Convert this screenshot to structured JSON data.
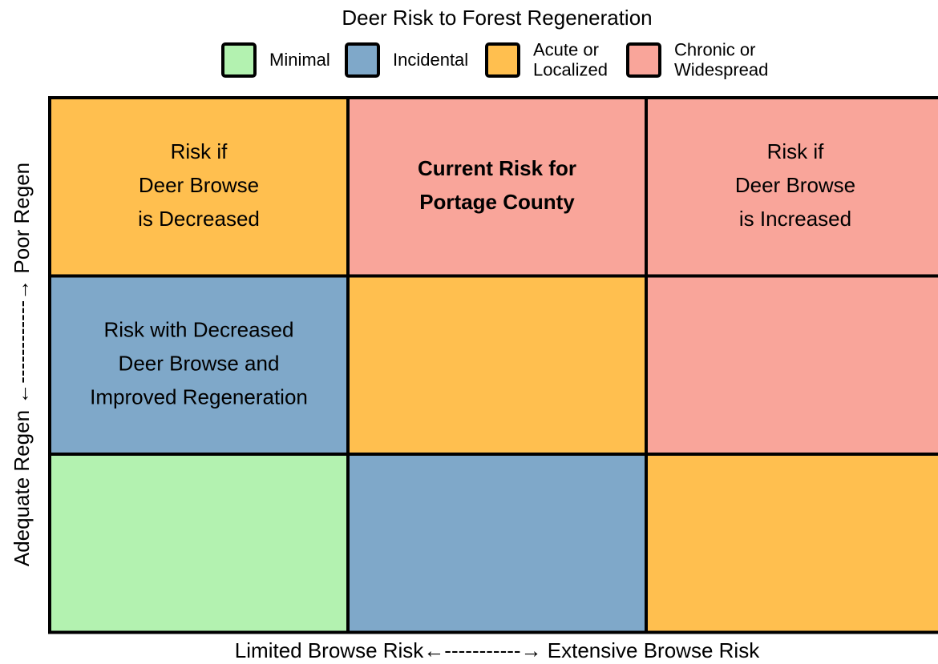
{
  "title": "Deer Risk to Forest Regeneration",
  "legend": {
    "items": [
      {
        "label": [
          "Minimal"
        ],
        "color": "#b3f2b0"
      },
      {
        "label": [
          "Incidental"
        ],
        "color": "#7fa8c9"
      },
      {
        "label": [
          "Acute or",
          "Localized"
        ],
        "color": "#ffbf4f"
      },
      {
        "label": [
          "Chronic or",
          "Widespread"
        ],
        "color": "#f9a59a"
      }
    ]
  },
  "grid": {
    "rows": [
      [
        {
          "color": "#ffbf4f",
          "lines": [
            "Risk if",
            "Deer Browse",
            "is Decreased"
          ]
        },
        {
          "color": "#f9a59a",
          "lines": [
            "Current Risk for",
            "Portage County"
          ],
          "bold": true
        },
        {
          "color": "#f9a59a",
          "lines": [
            "Risk if",
            "Deer Browse",
            "is Increased"
          ]
        }
      ],
      [
        {
          "color": "#7fa8c9",
          "lines": [
            "Risk with Decreased",
            "Deer Browse and",
            "Improved Regeneration"
          ]
        },
        {
          "color": "#ffbf4f",
          "lines": []
        },
        {
          "color": "#f9a59a",
          "lines": []
        }
      ],
      [
        {
          "color": "#b3f2b0",
          "lines": []
        },
        {
          "color": "#7fa8c9",
          "lines": []
        },
        {
          "color": "#ffbf4f",
          "lines": []
        }
      ]
    ]
  },
  "y_axis_label": "Adequate Regen ←------------→ Poor Regen",
  "x_axis_label": "Limited Browse Risk←-----------→ Extensive Browse Risk"
}
